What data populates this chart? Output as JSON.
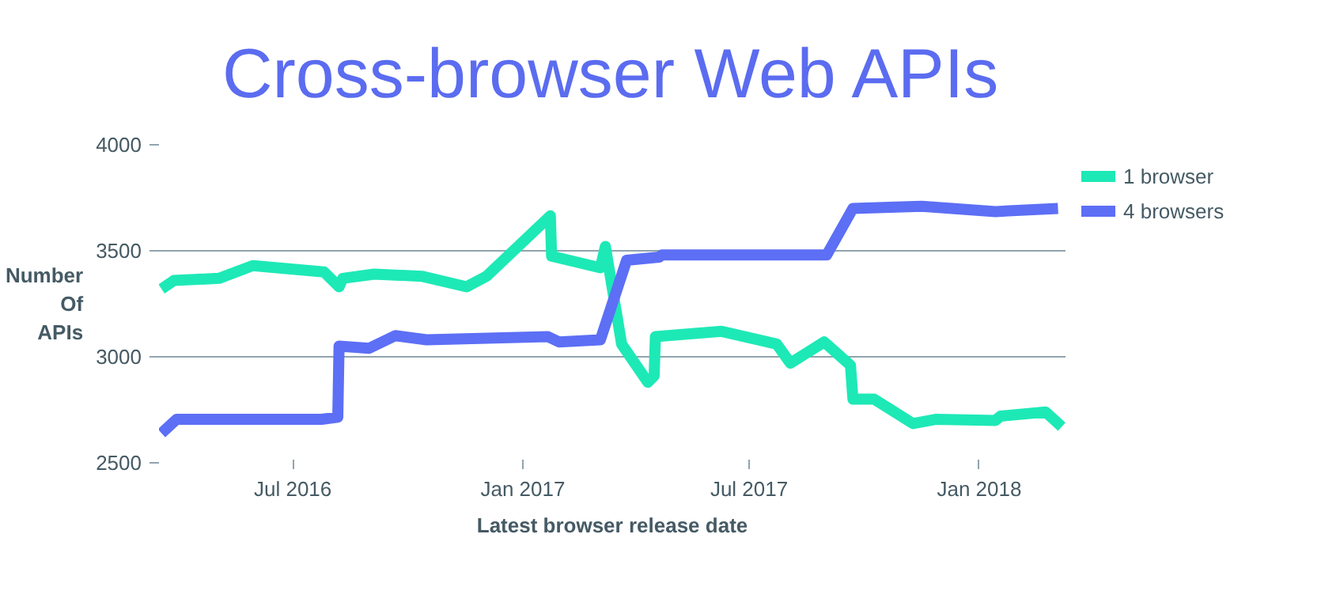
{
  "chart_data": {
    "type": "line",
    "title": "Cross-browser Web APIs",
    "xlabel": "Latest browser release date",
    "ylabel": "Number Of APIs",
    "xlim": [
      "2016-03-16",
      "2018-03-11"
    ],
    "ylim": [
      2500,
      4000
    ],
    "yticks": [
      2500,
      3000,
      3500,
      4000
    ],
    "xticks": [
      {
        "value": "2016-07-01",
        "label": "Jul 2016"
      },
      {
        "value": "2017-01-01",
        "label": "Jan 2017"
      },
      {
        "value": "2017-07-01",
        "label": "Jul 2017"
      },
      {
        "value": "2018-01-01",
        "label": "Jan 2018"
      }
    ],
    "grid": "y",
    "legend": "top right",
    "marker": "none",
    "line_style": "solid",
    "series": [
      {
        "name": "1 browser",
        "color": "#1de9b6",
        "x": [
          "2016-03-18",
          "2016-03-28",
          "2016-05-03",
          "2016-05-30",
          "2016-07-26",
          "2016-08-07",
          "2016-08-10",
          "2016-09-04",
          "2016-10-12",
          "2016-11-17",
          "2016-12-03",
          "2017-01-23",
          "2017-01-24",
          "2017-03-04",
          "2017-03-08",
          "2017-03-21",
          "2017-04-11",
          "2017-04-16",
          "2017-04-17",
          "2017-06-09",
          "2017-07-23",
          "2017-08-03",
          "2017-08-30",
          "2017-09-20",
          "2017-09-22",
          "2017-10-09",
          "2017-11-09",
          "2017-11-27",
          "2018-01-14",
          "2018-01-18",
          "2018-02-23",
          "2018-03-08"
        ],
        "values": [
          3320,
          3360,
          3370,
          3430,
          3400,
          3330,
          3370,
          3390,
          3380,
          3330,
          3380,
          3665,
          3475,
          3420,
          3520,
          3060,
          2880,
          2910,
          3095,
          3120,
          3060,
          2970,
          3070,
          2960,
          2800,
          2800,
          2685,
          2705,
          2700,
          2720,
          2740,
          2670
        ]
      },
      {
        "name": "4 browsers",
        "color": "#5c6ff5",
        "x": [
          "2016-03-18",
          "2016-03-30",
          "2016-07-24",
          "2016-08-06",
          "2016-08-07",
          "2016-08-31",
          "2016-09-21",
          "2016-10-16",
          "2017-01-21",
          "2017-01-30",
          "2017-03-04",
          "2017-03-25",
          "2017-04-20",
          "2017-04-22",
          "2017-09-01",
          "2017-09-22",
          "2017-11-16",
          "2018-01-14",
          "2018-03-05"
        ],
        "values": [
          2640,
          2705,
          2705,
          2715,
          3050,
          3040,
          3100,
          3080,
          3095,
          3070,
          3080,
          3455,
          3470,
          3480,
          3480,
          3700,
          3710,
          3685,
          3700
        ]
      }
    ]
  }
}
